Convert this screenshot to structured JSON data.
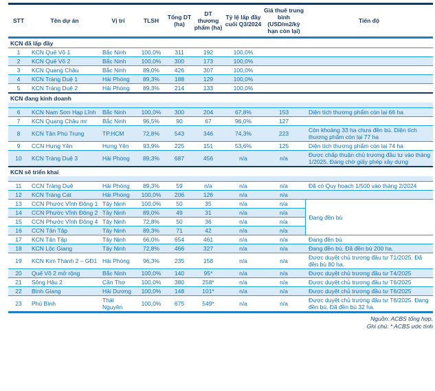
{
  "colors": {
    "navy_border": "#17375E",
    "blue_border": "#1F7EC2",
    "cyan_line": "#18A0DA",
    "stripe_bg": "#D9EAF8",
    "text_blue": "#0C70BE",
    "text_navy": "#17375E"
  },
  "table": {
    "columns": [
      {
        "key": "stt",
        "label": "STT"
      },
      {
        "key": "name",
        "label": "Tên dự án"
      },
      {
        "key": "location",
        "label": "Vị trí"
      },
      {
        "key": "tlsh",
        "label": "TLSH"
      },
      {
        "key": "total_ha",
        "label": "Tổng DT (ha)"
      },
      {
        "key": "commercial_ha",
        "label": "DT thương phẩm (ha)"
      },
      {
        "key": "occupancy",
        "label": "Tỷ lệ lấp đầy cuối Q3/2024"
      },
      {
        "key": "rent",
        "label": "Giá thuê trung bình (USD/m2/kỳ hạn còn lại)"
      },
      {
        "key": "progress",
        "label": "Tiến độ"
      }
    ],
    "sections": [
      {
        "title": "KCN đã lấp đầy",
        "strip": false,
        "rows": [
          {
            "stt": "1",
            "name": "KCN Quế Võ 1",
            "location": "Bắc Ninh",
            "tlsh": "100,0%",
            "total_ha": "311",
            "commercial_ha": "192",
            "occupancy": "100,0%",
            "rent": "",
            "progress": ""
          },
          {
            "stt": "2",
            "name": "KCN Quế Võ 2",
            "location": "Bắc Ninh",
            "tlsh": "100,0%",
            "total_ha": "300",
            "commercial_ha": "173",
            "occupancy": "100,0%",
            "rent": "",
            "progress": ""
          },
          {
            "stt": "3",
            "name": "KCN Quang Châu",
            "location": "Bắc Ninh",
            "tlsh": "89,0%",
            "total_ha": "426",
            "commercial_ha": "307",
            "occupancy": "100,0%",
            "rent": "",
            "progress": ""
          },
          {
            "stt": "4",
            "name": "KCN Tràng Duệ 1",
            "location": "Hải Phòng",
            "tlsh": "89,3%",
            "total_ha": "188",
            "commercial_ha": "129",
            "occupancy": "100,0%",
            "rent": "",
            "progress": ""
          },
          {
            "stt": "5",
            "name": "KCN Tràng Duệ 2",
            "location": "Hải Phòng",
            "tlsh": "89,3%",
            "total_ha": "214",
            "commercial_ha": "133",
            "occupancy": "100,0%",
            "rent": "",
            "progress": ""
          }
        ]
      },
      {
        "title": "KCN đang kinh doanh",
        "strip": true,
        "rows": [
          {
            "stt": "6",
            "name": "KCN Nam Sơn Hạp Lĩnh",
            "location": "Bắc Ninh",
            "tlsh": "100,0%",
            "total_ha": "300",
            "commercial_ha": "204",
            "occupancy": "67,8%",
            "rent": "153",
            "progress": "Diện tích thương phẩm còn lại 66 ha"
          },
          {
            "stt": "7",
            "name": "KCN Quang Châu mr",
            "location": "Bắc Ninh",
            "tlsh": "96,5%",
            "total_ha": "90",
            "commercial_ha": "67",
            "occupancy": "96,0%",
            "rent": "127",
            "progress": ""
          },
          {
            "stt": "8",
            "name": "KCN Tân Phú Trung",
            "location": "TP.HCM",
            "tlsh": "72,8%",
            "total_ha": "543",
            "commercial_ha": "346",
            "occupancy": "74,3%",
            "rent": "223",
            "progress": "Còn khoảng 33 ha chưa đền bù. Diện tích thương phẩm còn lại 77 ha"
          },
          {
            "stt": "9",
            "name": "CCN Hưng Yên",
            "location": "Hưng Yên",
            "tlsh": "93,9%",
            "total_ha": "225",
            "commercial_ha": "151",
            "occupancy": "53,6%",
            "rent": "125",
            "progress": "Diện tích thương phẩm còn lại 74 ha"
          },
          {
            "stt": "10",
            "name": "KCN Tràng Duệ 3",
            "location": "Hải Phòng",
            "tlsh": "89,3%",
            "total_ha": "687",
            "commercial_ha": "456",
            "occupancy": "n/a",
            "rent": "n/a",
            "progress": "Được chấp thuận chủ trương đầu tư vào tháng 1/2025. Đang chờ giấy phép xây dựng"
          }
        ]
      },
      {
        "title": "KCN sẽ triển khai",
        "strip": true,
        "rows": [
          {
            "stt": "11",
            "name": "CCN Tràng Duệ",
            "location": "Hải Phòng",
            "tlsh": "89,3%",
            "total_ha": "59",
            "commercial_ha": "n/a",
            "occupancy": "n/a",
            "rent": "n/a",
            "progress": "Đã có Quy hoạch 1/500 vào tháng 2/2024"
          },
          {
            "stt": "12",
            "name": "KCN Tràng Cát",
            "location": "Hải Phòng",
            "tlsh": "100,0%",
            "total_ha": "206",
            "commercial_ha": "126",
            "occupancy": "n/a",
            "rent": "n/a",
            "progress": ""
          },
          {
            "stt": "13",
            "name": "CCN Phước Vĩnh Đông 1",
            "location": "Tây Ninh",
            "tlsh": "100,0%",
            "total_ha": "50",
            "commercial_ha": "35",
            "occupancy": "n/a",
            "rent": "n/a",
            "progress": "Đang đền bù",
            "progress_rowspan": 4
          },
          {
            "stt": "14",
            "name": "CCN Phước Vĩnh Đông 2",
            "location": "Tây Ninh",
            "tlsh": "89,0%",
            "total_ha": "49",
            "commercial_ha": "31",
            "occupancy": "n/a",
            "rent": "n/a",
            "progress_merged": true
          },
          {
            "stt": "15",
            "name": "CCN Phước Vĩnh Đông 4",
            "location": "Tây Ninh",
            "tlsh": "72,8%",
            "total_ha": "50",
            "commercial_ha": "36",
            "occupancy": "n/a",
            "rent": "n/a",
            "progress_merged": true
          },
          {
            "stt": "16",
            "name": "CCN Tân Tập",
            "location": "Tây Ninh",
            "tlsh": "89,3%",
            "total_ha": "71",
            "commercial_ha": "42",
            "occupancy": "n/a",
            "rent": "n/a",
            "progress_merged": true
          },
          {
            "stt": "17",
            "name": "KCN Tân Tập",
            "location": "Tây Ninh",
            "tlsh": "66,0%",
            "total_ha": "654",
            "commercial_ha": "461",
            "occupancy": "n/a",
            "rent": "n/a",
            "progress": "Đang đền bù"
          },
          {
            "stt": "18",
            "name": "KCN Lộc Giang",
            "location": "Tây Ninh",
            "tlsh": "72,8%",
            "total_ha": "466",
            "commercial_ha": "327",
            "occupancy": "n/a",
            "rent": "n/a",
            "progress": "Đang đền bù. Đã đền bù 200 ha."
          },
          {
            "stt": "19",
            "name": "KCN Kim Thành 2 – GĐ1",
            "location": "Hải Phòng",
            "tlsh": "96,3%",
            "total_ha": "235",
            "commercial_ha": "158",
            "occupancy": "n/a",
            "rent": "n/a",
            "progress": "Được duyệt chủ trương đầu tư T1/2025. Đã đền bù 80 ha."
          },
          {
            "stt": "20",
            "name": "Quế Võ 2 mở rộng",
            "location": "Bắc Ninh",
            "tlsh": "100,0%",
            "total_ha": "140",
            "commercial_ha": "95*",
            "occupancy": "n/a",
            "rent": "n/a",
            "progress": "Được duyệt chủ trương đầu tư T4/2025"
          },
          {
            "stt": "21",
            "name": "Sông Hậu 2",
            "location": "Cần Thơ",
            "tlsh": "100,0%",
            "total_ha": "380",
            "commercial_ha": "258*",
            "occupancy": "n/a",
            "rent": "n/a",
            "progress": "Được duyệt chủ trương đầu tư T6/2025"
          },
          {
            "stt": "22",
            "name": "Bình Giang",
            "location": "Hải Dương",
            "tlsh": "100,0%",
            "total_ha": "148",
            "commercial_ha": "101*",
            "occupancy": "n/a",
            "rent": "n/a",
            "progress": "Được duyệt chủ trương đầu tư T6/2025"
          },
          {
            "stt": "23",
            "name": "Phú Bình",
            "location": "Thái Nguyên",
            "tlsh": "100,0%",
            "total_ha": "675",
            "commercial_ha": "549*",
            "occupancy": "n/a",
            "rent": "n/a",
            "progress": "Được duyệt chủ trương đầu tư T6/2025. Đang đền bù. Đã đền bù 32 ha."
          }
        ]
      }
    ]
  },
  "footer": {
    "source": "Nguồn: ACBS tổng hợp.",
    "note": "Ghi chú: * ACBS ước tính"
  }
}
